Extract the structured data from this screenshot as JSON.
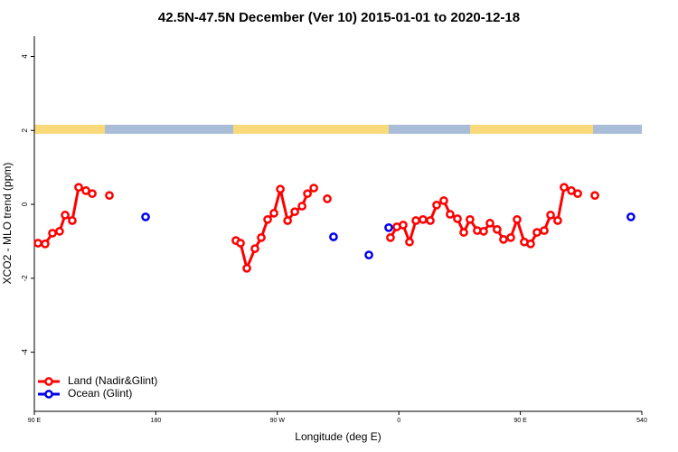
{
  "chart_data": {
    "type": "line",
    "title": "42.5N-47.5N December (Ver 10)   2015-01-01 to 2020-12-18",
    "xlabel": "Longitude (deg E)",
    "ylabel": "XCO2 - MLO trend (ppm)",
    "xlim": [
      90,
      540
    ],
    "ylim": [
      -5.6,
      4.55
    ],
    "xticks": [
      {
        "value": 90,
        "label": "90 E"
      },
      180,
      {
        "value": 270,
        "label": "90 W"
      },
      {
        "value": 360,
        "label": "0"
      },
      {
        "value": 450,
        "label": "90 E"
      },
      540
    ],
    "yticks": [
      -4,
      -2,
      0,
      2,
      4
    ],
    "legend": "bottom-left",
    "series": [
      {
        "name": "Land (Nadir&Glint)",
        "color": "#ff0000",
        "x": [
          92.7,
          98.0,
          103.4,
          108.7,
          112.8,
          118.1,
          122.8,
          128.2,
          132.9,
          null,
          145.6,
          null,
          239.3,
          242.7,
          247.4,
          253.4,
          258.1,
          262.8,
          267.5,
          272.2,
          277.6,
          282.9,
          288.3,
          292.3,
          297.0,
          null,
          307.0,
          null,
          353.8,
          358.5,
          363.2,
          367.9,
          372.6,
          377.9,
          383.3,
          388.0,
          393.3,
          398.0,
          403.4,
          408.1,
          412.7,
          418.1,
          422.8,
          427.5,
          432.8,
          437.5,
          442.9,
          447.6,
          452.9,
          457.6,
          462.3,
          467.7,
          472.4,
          477.7,
          482.4,
          487.8,
          492.5,
          null,
          505.2
        ],
        "values": [
          -1.05,
          -1.07,
          -0.78,
          -0.73,
          -0.29,
          -0.44,
          0.46,
          0.37,
          0.29,
          null,
          0.24,
          null,
          -0.98,
          -1.05,
          -1.73,
          -1.2,
          -0.9,
          -0.41,
          -0.24,
          0.41,
          -0.44,
          -0.2,
          -0.05,
          0.29,
          0.44,
          null,
          0.15,
          null,
          -0.9,
          -0.61,
          -0.56,
          -1.02,
          -0.44,
          -0.41,
          -0.44,
          -0.02,
          0.1,
          -0.27,
          -0.39,
          -0.76,
          -0.41,
          -0.71,
          -0.73,
          -0.51,
          -0.68,
          -0.95,
          -0.9,
          -0.41,
          -1.02,
          -1.07,
          -0.76,
          -0.71,
          -0.29,
          -0.44,
          0.46,
          0.37,
          0.29,
          null,
          0.24
        ]
      },
      {
        "name": "Ocean (Glint)",
        "color": "#0000ee",
        "x": [
          172.4,
          null,
          311.6,
          null,
          337.8,
          null,
          352.5,
          null,
          531.9
        ],
        "values": [
          -0.34,
          null,
          -0.88,
          null,
          -1.37,
          null,
          -0.63,
          null,
          -0.34
        ]
      }
    ]
  }
}
